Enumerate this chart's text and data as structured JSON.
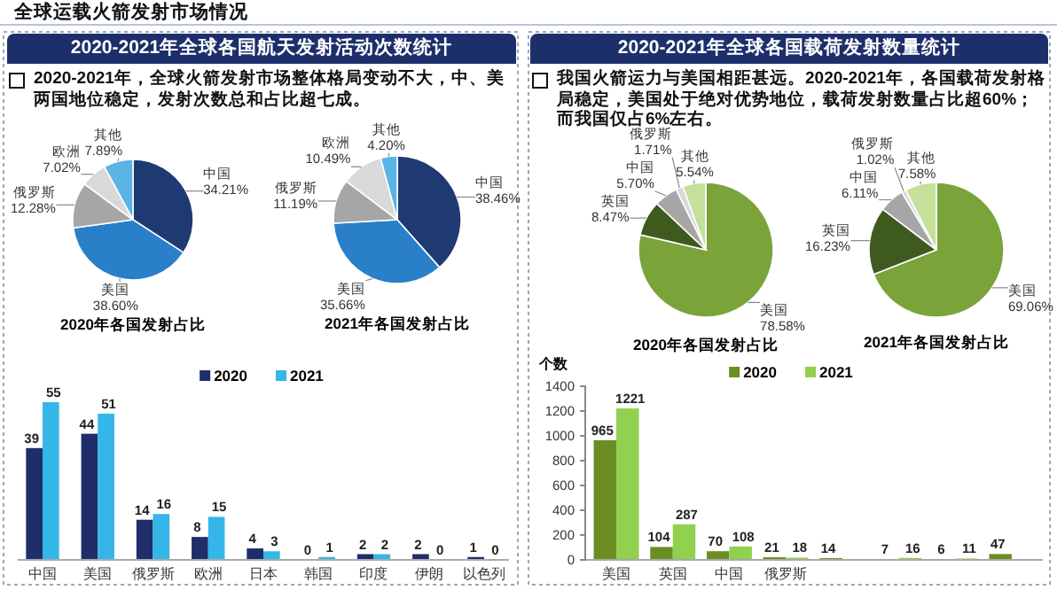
{
  "chart_data": [
    {
      "type": "other",
      "title": "全球运载火箭发射市场情况"
    },
    {
      "type": "other",
      "title": "2020-2021年全球各国航天发射活动次数统计",
      "annotations": [
        "2020-2021年，全球火箭发射市场整体格局变动不大，中、美两国地位稳定，发射次数总和占比超七成。"
      ]
    },
    {
      "type": "pie",
      "title": "2020年各国发射占比",
      "categories": [
        "中国",
        "美国",
        "俄罗斯",
        "欧洲",
        "其他"
      ],
      "values": [
        34.21,
        38.6,
        12.28,
        7.02,
        7.89
      ],
      "value_labels": [
        "34.21%",
        "38.60%",
        "12.28%",
        "7.02%",
        "7.89%"
      ],
      "colors": [
        "#1f3a73",
        "#2a7fc9",
        "#a6a6a6",
        "#d9d9d9",
        "#5ab4e5"
      ]
    },
    {
      "type": "pie",
      "title": "2021年各国发射占比",
      "categories": [
        "中国",
        "美国",
        "俄罗斯",
        "欧洲",
        "其他"
      ],
      "values": [
        38.46,
        35.66,
        11.19,
        10.49,
        4.2
      ],
      "value_labels": [
        "38.46%",
        "35.66%",
        "11.19%",
        "10.49%",
        "4.20%"
      ],
      "colors": [
        "#1f3a73",
        "#2a7fc9",
        "#a6a6a6",
        "#d9d9d9",
        "#5ab4e5"
      ]
    },
    {
      "type": "bar",
      "categories": [
        "中国",
        "美国",
        "俄罗斯",
        "欧洲",
        "日本",
        "韩国",
        "印度",
        "伊朗",
        "以色列"
      ],
      "series": [
        {
          "name": "2020",
          "color": "#1f2d6b",
          "values": [
            39,
            44,
            14,
            8,
            4,
            0,
            2,
            2,
            1
          ]
        },
        {
          "name": "2021",
          "color": "#35b6e8",
          "values": [
            55,
            51,
            16,
            15,
            3,
            1,
            2,
            0,
            0
          ]
        }
      ],
      "data_labels": true,
      "legend": "top"
    },
    {
      "type": "other",
      "title": "2020-2021年全球各国载荷发射数量统计",
      "annotations": [
        "我国火箭运力与美国相距甚远。2020-2021年，各国载荷发射格局稳定，美国处于绝对优势地位，载荷发射数量占比超60%；而我国仅占6%左右。"
      ]
    },
    {
      "type": "pie",
      "title": "2020年各国发射占比",
      "categories": [
        "美国",
        "英国",
        "中国",
        "俄罗斯",
        "其他"
      ],
      "values": [
        78.58,
        8.47,
        5.7,
        1.71,
        5.54
      ],
      "value_labels": [
        "78.58%",
        "8.47%",
        "5.70%",
        "1.71%",
        "5.54%"
      ],
      "colors": [
        "#7aa33a",
        "#3f5a1e",
        "#a6a6a6",
        "#d9d9d9",
        "#c5e09a"
      ]
    },
    {
      "type": "pie",
      "title": "2021年各国发射占比",
      "categories": [
        "美国",
        "英国",
        "中国",
        "俄罗斯",
        "其他"
      ],
      "values": [
        69.06,
        16.23,
        6.11,
        1.02,
        7.58
      ],
      "value_labels": [
        "69.06%",
        "16.23%",
        "6.11%",
        "1.02%",
        "7.58%"
      ],
      "colors": [
        "#7aa33a",
        "#3f5a1e",
        "#a6a6a6",
        "#d9d9d9",
        "#c5e09a"
      ]
    },
    {
      "type": "bar",
      "ylabel": "个数",
      "categories": [
        "美国",
        "英国",
        "中国",
        "俄罗斯",
        null,
        null,
        null,
        null
      ],
      "series": [
        {
          "name": "2020",
          "color": "#6b8e23",
          "values": [
            965,
            104,
            70,
            21,
            14,
            7,
            6,
            47
          ]
        },
        {
          "name": "2021",
          "color": "#92d050",
          "values": [
            1221,
            287,
            108,
            18,
            null,
            16,
            11,
            null
          ]
        }
      ],
      "ylim": [
        0,
        1400
      ],
      "yticks": [
        0,
        200,
        400,
        600,
        800,
        1000,
        1200,
        1400
      ],
      "data_labels": true,
      "legend": "top"
    }
  ]
}
